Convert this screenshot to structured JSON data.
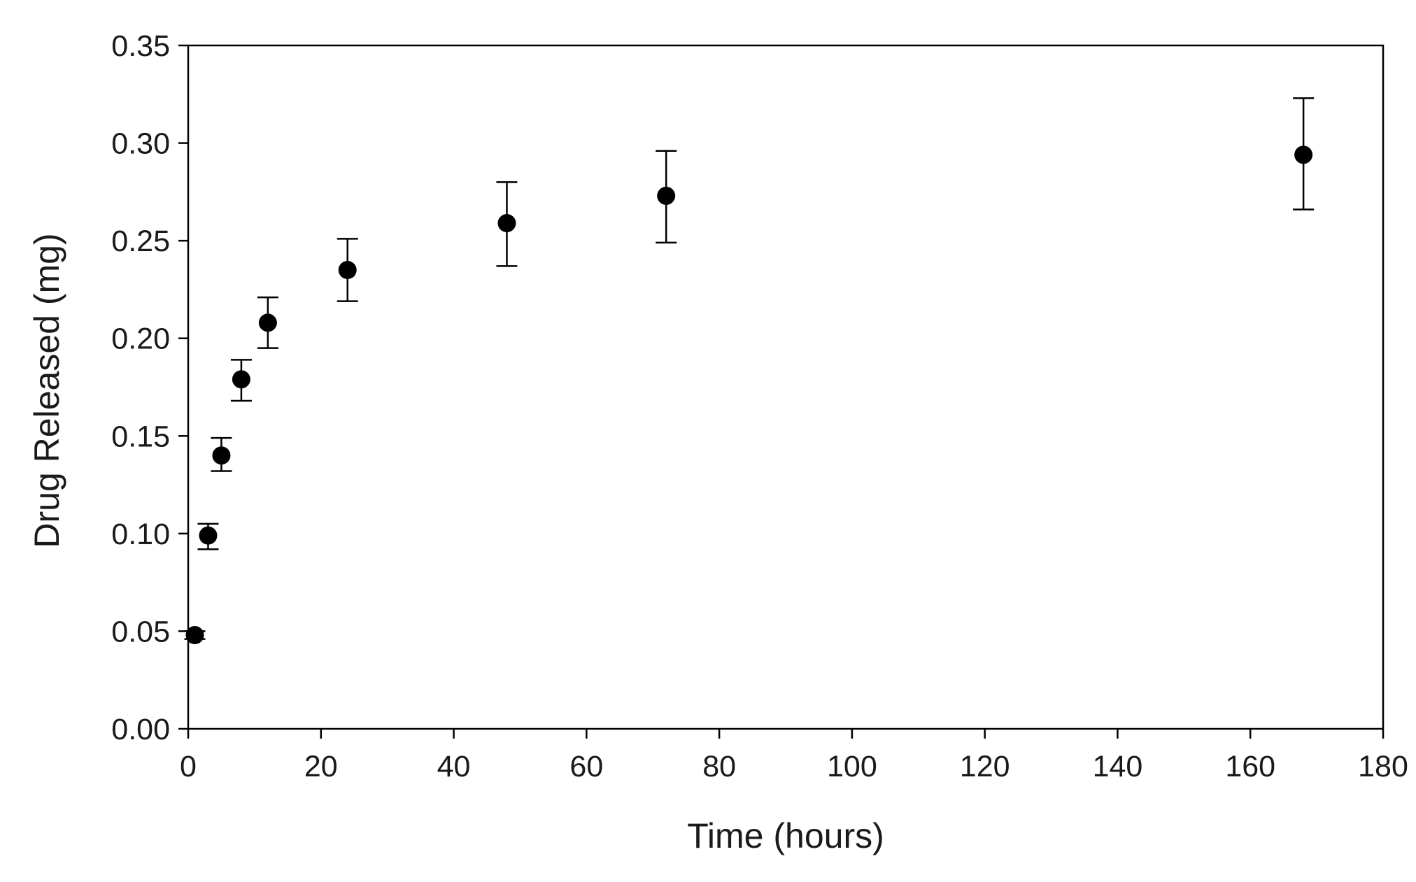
{
  "chart_data": {
    "type": "scatter",
    "title": "",
    "xlabel": "Time (hours)",
    "ylabel": "Drug Released (mg)",
    "xlim": [
      0,
      180
    ],
    "ylim": [
      0,
      0.35
    ],
    "x_ticks": [
      "0",
      "20",
      "40",
      "60",
      "80",
      "100",
      "120",
      "140",
      "160",
      "180"
    ],
    "y_ticks": [
      "0.00",
      "0.05",
      "0.10",
      "0.15",
      "0.20",
      "0.25",
      "0.30",
      "0.35"
    ],
    "grid": false,
    "legend": "none",
    "marker_color": "#000000",
    "series": [
      {
        "points": [
          {
            "x": 1,
            "y": 0.048,
            "err_low": 0.046,
            "err_high": 0.05
          },
          {
            "x": 3,
            "y": 0.099,
            "err_low": 0.092,
            "err_high": 0.105
          },
          {
            "x": 5,
            "y": 0.14,
            "err_low": 0.132,
            "err_high": 0.149
          },
          {
            "x": 8,
            "y": 0.179,
            "err_low": 0.168,
            "err_high": 0.189
          },
          {
            "x": 12,
            "y": 0.208,
            "err_low": 0.195,
            "err_high": 0.221
          },
          {
            "x": 24,
            "y": 0.235,
            "err_low": 0.219,
            "err_high": 0.251
          },
          {
            "x": 48,
            "y": 0.259,
            "err_low": 0.237,
            "err_high": 0.28
          },
          {
            "x": 72,
            "y": 0.273,
            "err_low": 0.249,
            "err_high": 0.296
          },
          {
            "x": 168,
            "y": 0.294,
            "err_low": 0.266,
            "err_high": 0.323
          }
        ]
      }
    ]
  }
}
